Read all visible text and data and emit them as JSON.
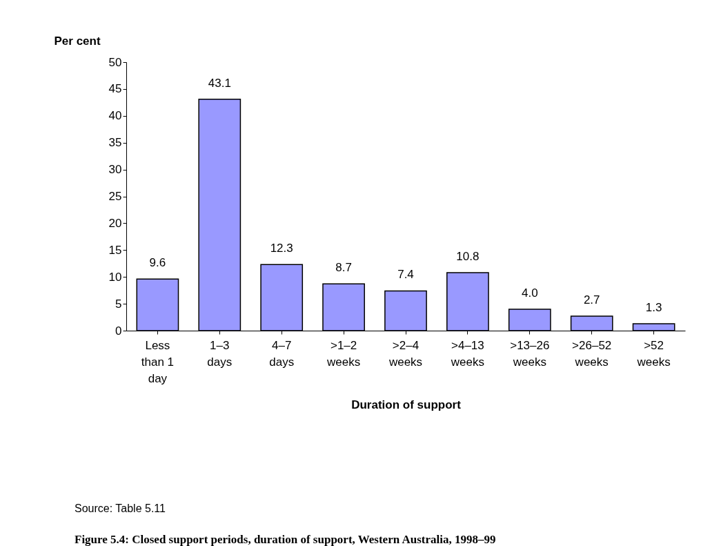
{
  "chart_data": {
    "type": "bar",
    "title": "Figure 5.4: Closed support periods, duration of support, Western Australia, 1998–99",
    "xlabel": "Duration of support",
    "ylabel": "Per cent",
    "categories": [
      "Less\nthan 1\nday",
      "1–3\ndays",
      "4–7\ndays",
      ">1–2\nweeks",
      ">2–4\nweeks",
      ">4–13\nweeks",
      ">13–26\nweeks",
      ">26–52\nweeks",
      ">52\nweeks"
    ],
    "values": [
      9.6,
      43.1,
      12.3,
      8.7,
      7.4,
      10.8,
      4.0,
      2.7,
      1.3
    ],
    "value_labels": [
      "9.6",
      "43.1",
      "12.3",
      "8.7",
      "7.4",
      "10.8",
      "4.0",
      "2.7",
      "1.3"
    ],
    "color": "#9999ff",
    "ylim": [
      0,
      50
    ],
    "yticks": [
      0,
      5,
      10,
      15,
      20,
      25,
      30,
      35,
      40,
      45,
      50
    ],
    "grid": false,
    "annotations": [
      "Source: Table 5.11"
    ]
  }
}
